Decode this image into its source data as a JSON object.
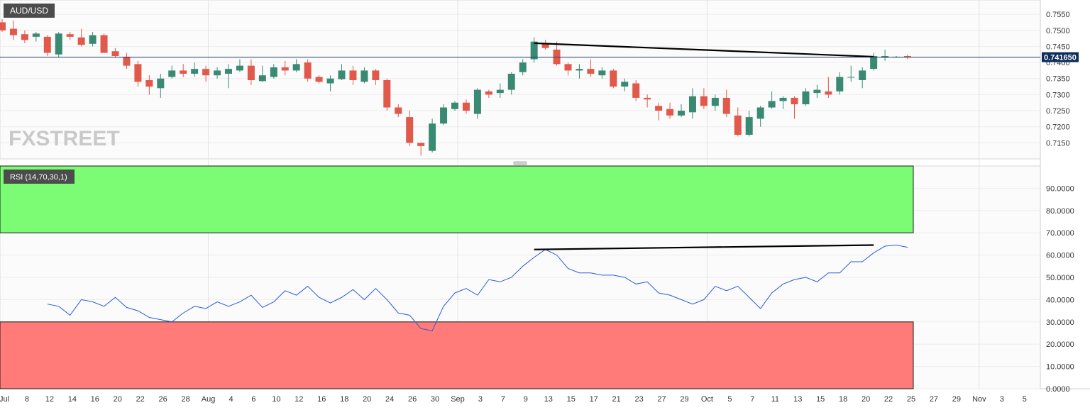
{
  "chart_data": [
    {
      "type": "candlestick",
      "symbol": "AUD/USD",
      "watermark": "FXSTREET",
      "ylim": [
        0.71,
        0.759
      ],
      "y_ticks": [
        "0.7550",
        "0.7500",
        "0.7450",
        "0.7400",
        "0.7350",
        "0.7300",
        "0.7250",
        "0.7200",
        "0.7150"
      ],
      "last_price": "0.741650",
      "grid": true,
      "trendline": {
        "from": [
          "2021-09-03",
          0.746
        ],
        "to": [
          "2021-10-15",
          0.7418
        ]
      },
      "candles": [
        {
          "date": "2021-06-30",
          "o": 0.7525,
          "h": 0.7535,
          "l": 0.7495,
          "c": 0.75
        },
        {
          "date": "2021-07-01",
          "o": 0.7505,
          "h": 0.753,
          "l": 0.747,
          "c": 0.7485
        },
        {
          "date": "2021-07-02",
          "o": 0.7488,
          "h": 0.75,
          "l": 0.746,
          "c": 0.747
        },
        {
          "date": "2021-07-05",
          "o": 0.748,
          "h": 0.7495,
          "l": 0.7465,
          "c": 0.749
        },
        {
          "date": "2021-07-06",
          "o": 0.748,
          "h": 0.7485,
          "l": 0.742,
          "c": 0.743
        },
        {
          "date": "2021-07-07",
          "o": 0.7425,
          "h": 0.7495,
          "l": 0.7415,
          "c": 0.749
        },
        {
          "date": "2021-07-08",
          "o": 0.7488,
          "h": 0.7495,
          "l": 0.747,
          "c": 0.748
        },
        {
          "date": "2021-07-09",
          "o": 0.7478,
          "h": 0.7505,
          "l": 0.745,
          "c": 0.7455
        },
        {
          "date": "2021-07-12",
          "o": 0.7458,
          "h": 0.7495,
          "l": 0.745,
          "c": 0.7485
        },
        {
          "date": "2021-07-13",
          "o": 0.7485,
          "h": 0.749,
          "l": 0.743,
          "c": 0.743
        },
        {
          "date": "2021-07-14",
          "o": 0.7435,
          "h": 0.7445,
          "l": 0.7415,
          "c": 0.742
        },
        {
          "date": "2021-07-15",
          "o": 0.7418,
          "h": 0.743,
          "l": 0.738,
          "c": 0.739
        },
        {
          "date": "2021-07-16",
          "o": 0.7395,
          "h": 0.7405,
          "l": 0.7325,
          "c": 0.734
        },
        {
          "date": "2021-07-19",
          "o": 0.7345,
          "h": 0.736,
          "l": 0.73,
          "c": 0.7325
        },
        {
          "date": "2021-07-20",
          "o": 0.732,
          "h": 0.7365,
          "l": 0.729,
          "c": 0.735
        },
        {
          "date": "2021-07-21",
          "o": 0.7355,
          "h": 0.739,
          "l": 0.735,
          "c": 0.7375
        },
        {
          "date": "2021-07-22",
          "o": 0.7375,
          "h": 0.7395,
          "l": 0.7355,
          "c": 0.7365
        },
        {
          "date": "2021-07-23",
          "o": 0.7365,
          "h": 0.74,
          "l": 0.7355,
          "c": 0.738
        },
        {
          "date": "2021-07-26",
          "o": 0.738,
          "h": 0.739,
          "l": 0.734,
          "c": 0.736
        },
        {
          "date": "2021-07-27",
          "o": 0.736,
          "h": 0.7385,
          "l": 0.735,
          "c": 0.7375
        },
        {
          "date": "2021-07-28",
          "o": 0.7365,
          "h": 0.7395,
          "l": 0.732,
          "c": 0.738
        },
        {
          "date": "2021-07-29",
          "o": 0.7375,
          "h": 0.741,
          "l": 0.737,
          "c": 0.739
        },
        {
          "date": "2021-07-30",
          "o": 0.739,
          "h": 0.741,
          "l": 0.733,
          "c": 0.7345
        },
        {
          "date": "2021-08-02",
          "o": 0.7342,
          "h": 0.739,
          "l": 0.734,
          "c": 0.736
        },
        {
          "date": "2021-08-03",
          "o": 0.7355,
          "h": 0.7395,
          "l": 0.735,
          "c": 0.7385
        },
        {
          "date": "2021-08-04",
          "o": 0.7385,
          "h": 0.7405,
          "l": 0.736,
          "c": 0.7375
        },
        {
          "date": "2021-08-05",
          "o": 0.7375,
          "h": 0.741,
          "l": 0.737,
          "c": 0.7395
        },
        {
          "date": "2021-08-06",
          "o": 0.74,
          "h": 0.741,
          "l": 0.734,
          "c": 0.735
        },
        {
          "date": "2021-08-09",
          "o": 0.7355,
          "h": 0.736,
          "l": 0.7335,
          "c": 0.734
        },
        {
          "date": "2021-08-10",
          "o": 0.7335,
          "h": 0.736,
          "l": 0.731,
          "c": 0.735
        },
        {
          "date": "2021-08-11",
          "o": 0.7348,
          "h": 0.7395,
          "l": 0.7345,
          "c": 0.7375
        },
        {
          "date": "2021-08-12",
          "o": 0.7375,
          "h": 0.739,
          "l": 0.733,
          "c": 0.7345
        },
        {
          "date": "2021-08-13",
          "o": 0.734,
          "h": 0.7385,
          "l": 0.7335,
          "c": 0.7375
        },
        {
          "date": "2021-08-16",
          "o": 0.7375,
          "h": 0.738,
          "l": 0.733,
          "c": 0.7345
        },
        {
          "date": "2021-08-17",
          "o": 0.7345,
          "h": 0.735,
          "l": 0.725,
          "c": 0.726
        },
        {
          "date": "2021-08-18",
          "o": 0.726,
          "h": 0.727,
          "l": 0.723,
          "c": 0.724
        },
        {
          "date": "2021-08-19",
          "o": 0.723,
          "h": 0.725,
          "l": 0.714,
          "c": 0.715
        },
        {
          "date": "2021-08-20",
          "o": 0.715,
          "h": 0.715,
          "l": 0.711,
          "c": 0.714
        },
        {
          "date": "2021-08-23",
          "o": 0.7125,
          "h": 0.7225,
          "l": 0.712,
          "c": 0.721
        },
        {
          "date": "2021-08-24",
          "o": 0.721,
          "h": 0.727,
          "l": 0.7205,
          "c": 0.726
        },
        {
          "date": "2021-08-25",
          "o": 0.7255,
          "h": 0.728,
          "l": 0.725,
          "c": 0.7275
        },
        {
          "date": "2021-08-26",
          "o": 0.7275,
          "h": 0.7285,
          "l": 0.724,
          "c": 0.725
        },
        {
          "date": "2021-08-27",
          "o": 0.724,
          "h": 0.732,
          "l": 0.7225,
          "c": 0.7315
        },
        {
          "date": "2021-08-30",
          "o": 0.731,
          "h": 0.7315,
          "l": 0.729,
          "c": 0.73
        },
        {
          "date": "2021-08-31",
          "o": 0.7305,
          "h": 0.7335,
          "l": 0.729,
          "c": 0.7315
        },
        {
          "date": "2021-09-01",
          "o": 0.7315,
          "h": 0.737,
          "l": 0.73,
          "c": 0.7365
        },
        {
          "date": "2021-09-02",
          "o": 0.737,
          "h": 0.741,
          "l": 0.736,
          "c": 0.74
        },
        {
          "date": "2021-09-03",
          "o": 0.741,
          "h": 0.7478,
          "l": 0.74,
          "c": 0.7465
        },
        {
          "date": "2021-09-06",
          "o": 0.7458,
          "h": 0.747,
          "l": 0.744,
          "c": 0.7445
        },
        {
          "date": "2021-09-07",
          "o": 0.744,
          "h": 0.7465,
          "l": 0.739,
          "c": 0.7395
        },
        {
          "date": "2021-09-08",
          "o": 0.7395,
          "h": 0.74,
          "l": 0.736,
          "c": 0.7375
        },
        {
          "date": "2021-09-09",
          "o": 0.7375,
          "h": 0.7395,
          "l": 0.735,
          "c": 0.738
        },
        {
          "date": "2021-09-10",
          "o": 0.738,
          "h": 0.741,
          "l": 0.7355,
          "c": 0.7365
        },
        {
          "date": "2021-09-13",
          "o": 0.736,
          "h": 0.7385,
          "l": 0.735,
          "c": 0.7375
        },
        {
          "date": "2021-09-14",
          "o": 0.7375,
          "h": 0.738,
          "l": 0.732,
          "c": 0.7325
        },
        {
          "date": "2021-09-15",
          "o": 0.7325,
          "h": 0.735,
          "l": 0.731,
          "c": 0.734
        },
        {
          "date": "2021-09-16",
          "o": 0.7335,
          "h": 0.7345,
          "l": 0.728,
          "c": 0.729
        },
        {
          "date": "2021-09-17",
          "o": 0.729,
          "h": 0.73,
          "l": 0.726,
          "c": 0.7285
        },
        {
          "date": "2021-09-20",
          "o": 0.7265,
          "h": 0.7275,
          "l": 0.722,
          "c": 0.725
        },
        {
          "date": "2021-09-21",
          "o": 0.7255,
          "h": 0.7275,
          "l": 0.7225,
          "c": 0.7235
        },
        {
          "date": "2021-09-22",
          "o": 0.7235,
          "h": 0.727,
          "l": 0.723,
          "c": 0.725
        },
        {
          "date": "2021-09-23",
          "o": 0.7245,
          "h": 0.732,
          "l": 0.7225,
          "c": 0.7295
        },
        {
          "date": "2021-09-24",
          "o": 0.7295,
          "h": 0.732,
          "l": 0.7255,
          "c": 0.7265
        },
        {
          "date": "2021-09-27",
          "o": 0.7265,
          "h": 0.73,
          "l": 0.725,
          "c": 0.729
        },
        {
          "date": "2021-09-28",
          "o": 0.729,
          "h": 0.7315,
          "l": 0.723,
          "c": 0.724
        },
        {
          "date": "2021-09-29",
          "o": 0.7235,
          "h": 0.726,
          "l": 0.717,
          "c": 0.7175
        },
        {
          "date": "2021-09-30",
          "o": 0.7175,
          "h": 0.725,
          "l": 0.717,
          "c": 0.723
        },
        {
          "date": "2021-10-01",
          "o": 0.7225,
          "h": 0.7265,
          "l": 0.72,
          "c": 0.726
        },
        {
          "date": "2021-10-04",
          "o": 0.726,
          "h": 0.731,
          "l": 0.7255,
          "c": 0.728
        },
        {
          "date": "2021-10-05",
          "o": 0.728,
          "h": 0.7295,
          "l": 0.7255,
          "c": 0.729
        },
        {
          "date": "2021-10-06",
          "o": 0.729,
          "h": 0.7295,
          "l": 0.7225,
          "c": 0.727
        },
        {
          "date": "2021-10-07",
          "o": 0.727,
          "h": 0.732,
          "l": 0.7265,
          "c": 0.731
        },
        {
          "date": "2021-10-08",
          "o": 0.7305,
          "h": 0.733,
          "l": 0.729,
          "c": 0.7315
        },
        {
          "date": "2021-10-11",
          "o": 0.731,
          "h": 0.7355,
          "l": 0.729,
          "c": 0.73
        },
        {
          "date": "2021-10-12",
          "o": 0.731,
          "h": 0.737,
          "l": 0.73,
          "c": 0.7355
        },
        {
          "date": "2021-10-13",
          "o": 0.7355,
          "h": 0.739,
          "l": 0.734,
          "c": 0.7355
        },
        {
          "date": "2021-10-14",
          "o": 0.7345,
          "h": 0.7385,
          "l": 0.732,
          "c": 0.7375
        },
        {
          "date": "2021-10-15",
          "o": 0.738,
          "h": 0.743,
          "l": 0.7375,
          "c": 0.742
        },
        {
          "date": "2021-10-18",
          "o": 0.7415,
          "h": 0.744,
          "l": 0.7405,
          "c": 0.742
        },
        {
          "date": "2021-10-19",
          "o": 0.7418,
          "h": 0.742,
          "l": 0.7415,
          "c": 0.7418
        },
        {
          "date": "2021-10-20",
          "o": 0.742,
          "h": 0.7425,
          "l": 0.741,
          "c": 0.7416
        }
      ]
    },
    {
      "type": "line",
      "title": "RSI (14,70,30,1)",
      "ylim": [
        0,
        100
      ],
      "y_ticks": [
        "90.0000",
        "80.0000",
        "70.0000",
        "60.0000",
        "50.0000",
        "40.0000",
        "30.0000",
        "20.0000",
        "10.0000",
        "0.0000"
      ],
      "overbought": 70,
      "oversold": 30,
      "trendline": {
        "from": [
          "2021-09-03",
          62.5
        ],
        "to": [
          "2021-10-15",
          64.5
        ]
      },
      "series": [
        {
          "values": [
            38,
            37,
            33,
            40,
            39,
            37,
            41,
            36.5,
            35,
            32,
            31,
            30,
            34,
            37,
            36,
            39,
            37,
            39,
            42,
            36.5,
            39,
            44,
            42,
            46,
            41,
            38.5,
            41,
            44.5,
            40,
            45,
            40,
            34,
            33,
            27,
            26,
            37,
            43,
            45,
            42,
            49,
            48,
            50,
            55,
            59,
            62.5,
            60,
            54,
            52,
            52,
            51,
            51,
            50,
            47,
            48,
            43,
            42,
            40,
            38,
            40,
            46,
            44,
            46,
            41,
            36,
            43,
            47,
            49,
            50,
            48,
            52,
            52,
            57,
            57,
            61,
            64,
            64.5,
            63.5
          ]
        }
      ]
    }
  ],
  "x_axis": {
    "ticks": [
      "Jul",
      "8",
      "12",
      "14",
      "16",
      "20",
      "22",
      "26",
      "28",
      "Aug",
      "4",
      "6",
      "10",
      "12",
      "16",
      "18",
      "20",
      "24",
      "26",
      "30",
      "Sep",
      "3",
      "7",
      "9",
      "13",
      "15",
      "17",
      "21",
      "23",
      "27",
      "29",
      "Oct",
      "5",
      "7",
      "11",
      "13",
      "15",
      "18",
      "20",
      "22",
      "25",
      "27",
      "29",
      "Nov",
      "3",
      "5"
    ]
  },
  "colors": {
    "up": "#3a8a73",
    "down": "#e0594a",
    "rsi_line": "#2a5bd7",
    "overbought_zone": "#7cfc75",
    "oversold_zone": "#ff7b79",
    "label_bg": "#4c4c4c",
    "price_label_bg": "#0d2c5a"
  }
}
